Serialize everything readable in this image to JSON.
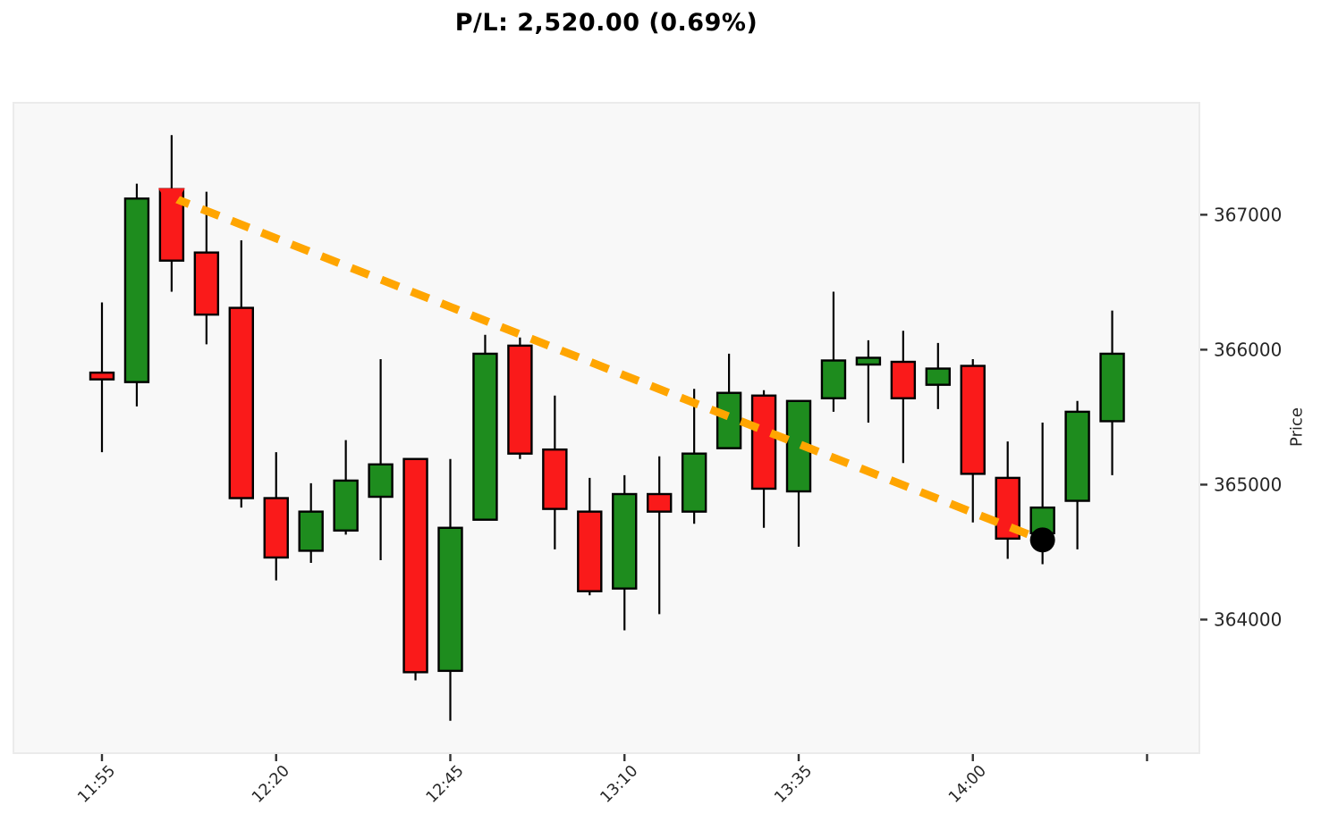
{
  "chart_data": {
    "type": "candlestick",
    "title": "P/L: 2,520.00 (0.69%)",
    "ylabel": "Price",
    "ylabel_side": "right",
    "grid": false,
    "ylim": [
      363010,
      367830
    ],
    "y_ticks": [
      367000,
      366000,
      365000,
      364000
    ],
    "x_ticks": [
      {
        "time": "11:55",
        "label": "11:55"
      },
      {
        "time": "12:20",
        "label": "12:20"
      },
      {
        "time": "12:45",
        "label": "12:45"
      },
      {
        "time": "13:10",
        "label": "13:10"
      },
      {
        "time": "13:35",
        "label": "13:35"
      },
      {
        "time": "14:00",
        "label": "14:00"
      },
      {
        "time": "14:25",
        "label": ""
      }
    ],
    "colors": {
      "up": "#1e8c1e",
      "down": "#fa1a1a",
      "wick": "#000000",
      "body_border": "#000000",
      "trend": "#ffa500",
      "entry_marker": "#fa1a1a",
      "exit_marker": "#000000",
      "plot_bg": "#f8f8f8",
      "plot_border": "#ebebeb",
      "fig_bg": "#ffffff",
      "tick_label": "#262626",
      "axis_tick": "#333333"
    },
    "candles": [
      {
        "time": "11:55",
        "open": 365830,
        "high": 366350,
        "low": 365240,
        "close": 365780
      },
      {
        "time": "12:00",
        "open": 365760,
        "high": 367230,
        "low": 365580,
        "close": 367120
      },
      {
        "time": "12:05",
        "open": 367190,
        "high": 367590,
        "low": 366430,
        "close": 366660
      },
      {
        "time": "12:10",
        "open": 366720,
        "high": 367170,
        "low": 366040,
        "close": 366260
      },
      {
        "time": "12:15",
        "open": 366310,
        "high": 366810,
        "low": 364830,
        "close": 364900
      },
      {
        "time": "12:20",
        "open": 364900,
        "high": 365240,
        "low": 364290,
        "close": 364460
      },
      {
        "time": "12:25",
        "open": 364510,
        "high": 365010,
        "low": 364420,
        "close": 364800
      },
      {
        "time": "12:30",
        "open": 364660,
        "high": 365330,
        "low": 364630,
        "close": 365030
      },
      {
        "time": "12:35",
        "open": 364910,
        "high": 365930,
        "low": 364440,
        "close": 365150
      },
      {
        "time": "12:40",
        "open": 365190,
        "high": 365190,
        "low": 363550,
        "close": 363610
      },
      {
        "time": "12:45",
        "open": 363620,
        "high": 365190,
        "low": 363250,
        "close": 364680
      },
      {
        "time": "12:50",
        "open": 364740,
        "high": 366110,
        "low": 364740,
        "close": 365970
      },
      {
        "time": "12:55",
        "open": 366030,
        "high": 366090,
        "low": 365190,
        "close": 365230
      },
      {
        "time": "13:00",
        "open": 365260,
        "high": 365660,
        "low": 364520,
        "close": 364820
      },
      {
        "time": "13:05",
        "open": 364800,
        "high": 365050,
        "low": 364180,
        "close": 364210
      },
      {
        "time": "13:10",
        "open": 364230,
        "high": 365070,
        "low": 363920,
        "close": 364930
      },
      {
        "time": "13:15",
        "open": 364930,
        "high": 365210,
        "low": 364040,
        "close": 364800
      },
      {
        "time": "13:20",
        "open": 364800,
        "high": 365710,
        "low": 364710,
        "close": 365230
      },
      {
        "time": "13:25",
        "open": 365270,
        "high": 365970,
        "low": 365270,
        "close": 365680
      },
      {
        "time": "13:30",
        "open": 365660,
        "high": 365700,
        "low": 364680,
        "close": 364970
      },
      {
        "time": "13:35",
        "open": 364950,
        "high": 365620,
        "low": 364540,
        "close": 365620
      },
      {
        "time": "13:40",
        "open": 365640,
        "high": 366430,
        "low": 365540,
        "close": 365920
      },
      {
        "time": "13:45",
        "open": 365890,
        "high": 366070,
        "low": 365460,
        "close": 365940
      },
      {
        "time": "13:50",
        "open": 365910,
        "high": 366140,
        "low": 365160,
        "close": 365640
      },
      {
        "time": "13:55",
        "open": 365740,
        "high": 366050,
        "low": 365560,
        "close": 365860
      },
      {
        "time": "14:00",
        "open": 365880,
        "high": 365930,
        "low": 364720,
        "close": 365080
      },
      {
        "time": "14:05",
        "open": 365050,
        "high": 365320,
        "low": 364450,
        "close": 364600
      },
      {
        "time": "14:10",
        "open": 364640,
        "high": 365460,
        "low": 364410,
        "close": 364830
      },
      {
        "time": "14:15",
        "open": 364880,
        "high": 365620,
        "low": 364520,
        "close": 365540
      },
      {
        "time": "14:20",
        "open": 365470,
        "high": 366290,
        "low": 365070,
        "close": 365970
      }
    ],
    "trend_line": {
      "style": "dashed",
      "color": "#ffa500",
      "from": {
        "time": "12:05",
        "price": 367130
      },
      "to": {
        "time": "14:10",
        "price": 364590
      }
    },
    "markers": [
      {
        "name": "entry",
        "shape": "triangle-down",
        "color": "#fa1a1a",
        "time": "12:05",
        "price": 367130
      },
      {
        "name": "exit",
        "shape": "circle",
        "color": "#000000",
        "time": "14:10",
        "price": 364590
      }
    ]
  }
}
